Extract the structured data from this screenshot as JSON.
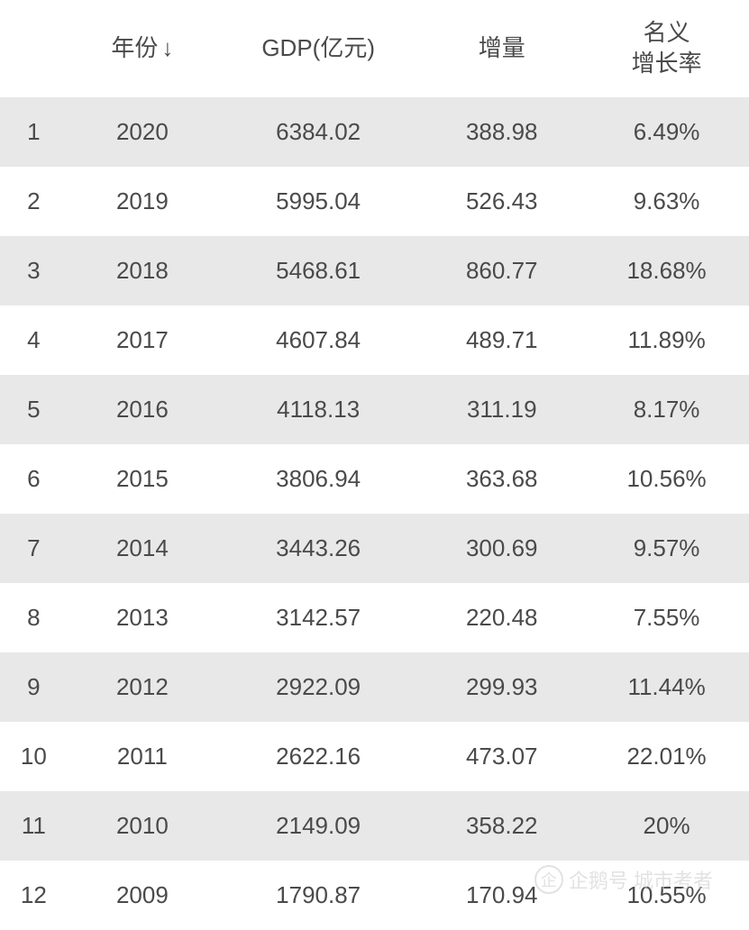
{
  "table": {
    "columns": {
      "index": "",
      "year": "年份",
      "sort_indicator": "↓",
      "gdp": "GDP(亿元)",
      "delta": "增量",
      "growth": "名义\n增长率"
    },
    "column_widths": {
      "index": "9%",
      "year": "20%",
      "gdp": "27%",
      "delta": "22%",
      "growth": "22%"
    },
    "rows": [
      {
        "index": "1",
        "year": "2020",
        "gdp": "6384.02",
        "delta": "388.98",
        "growth": "6.49%"
      },
      {
        "index": "2",
        "year": "2019",
        "gdp": "5995.04",
        "delta": "526.43",
        "growth": "9.63%"
      },
      {
        "index": "3",
        "year": "2018",
        "gdp": "5468.61",
        "delta": "860.77",
        "growth": "18.68%"
      },
      {
        "index": "4",
        "year": "2017",
        "gdp": "4607.84",
        "delta": "489.71",
        "growth": "11.89%"
      },
      {
        "index": "5",
        "year": "2016",
        "gdp": "4118.13",
        "delta": "311.19",
        "growth": "8.17%"
      },
      {
        "index": "6",
        "year": "2015",
        "gdp": "3806.94",
        "delta": "363.68",
        "growth": "10.56%"
      },
      {
        "index": "7",
        "year": "2014",
        "gdp": "3443.26",
        "delta": "300.69",
        "growth": "9.57%"
      },
      {
        "index": "8",
        "year": "2013",
        "gdp": "3142.57",
        "delta": "220.48",
        "growth": "7.55%"
      },
      {
        "index": "9",
        "year": "2012",
        "gdp": "2922.09",
        "delta": "299.93",
        "growth": "11.44%"
      },
      {
        "index": "10",
        "year": "2011",
        "gdp": "2622.16",
        "delta": "473.07",
        "growth": "22.01%"
      },
      {
        "index": "11",
        "year": "2010",
        "gdp": "2149.09",
        "delta": "358.22",
        "growth": "20%"
      },
      {
        "index": "12",
        "year": "2009",
        "gdp": "1790.87",
        "delta": "170.94",
        "growth": "10.55%"
      }
    ]
  },
  "styling": {
    "header_bg": "#ffffff",
    "row_odd_bg": "#e8e8e8",
    "row_even_bg": "#ffffff",
    "text_color": "#4a4a4a",
    "font_size": 26,
    "row_padding": 23
  },
  "watermark": {
    "text": "企鹅号 城市考者",
    "icon_label": "企",
    "color": "#d0d0d0"
  }
}
